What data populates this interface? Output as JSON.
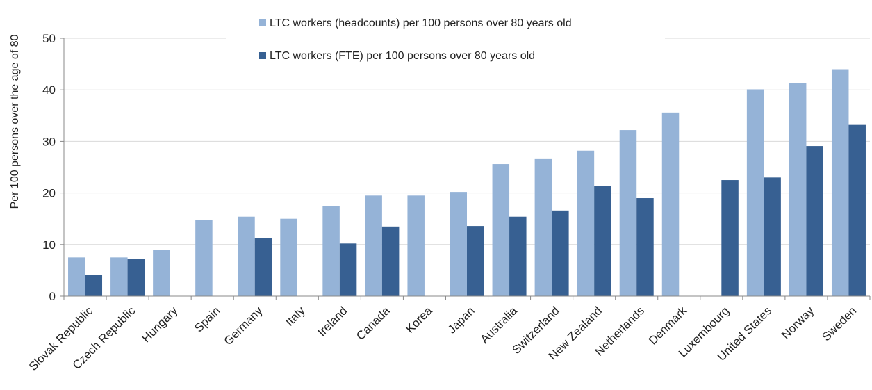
{
  "chart_data": {
    "type": "bar",
    "title": "",
    "xlabel": "",
    "ylabel": "Per 100 persons over the age of 80",
    "ylim": [
      0,
      50
    ],
    "yticks": [
      0,
      10,
      20,
      30,
      40,
      50
    ],
    "grid": "horizontal",
    "legend_position": "top",
    "categories": [
      "Slovak Republic",
      "Czech Republic",
      "Hungary",
      "Spain",
      "Germany",
      "Italy",
      "Ireland",
      "Canada",
      "Korea",
      "Japan",
      "Australia",
      "Switzerland",
      "New Zealand",
      "Netherlands",
      "Denmark",
      "Luxembourg",
      "United States",
      "Norway",
      "Sweden"
    ],
    "series": [
      {
        "name": "LTC workers (headcounts) per 100 persons over 80 years old",
        "color": "#95b3d7",
        "values": [
          7.5,
          7.5,
          9.0,
          14.7,
          15.4,
          15.0,
          17.5,
          19.5,
          19.5,
          20.2,
          25.6,
          26.7,
          28.2,
          32.2,
          35.6,
          null,
          40.1,
          41.3,
          44.0
        ]
      },
      {
        "name": "LTC workers (FTE) per 100 persons over 80 years old",
        "color": "#376092",
        "values": [
          4.1,
          7.2,
          null,
          null,
          11.2,
          null,
          10.2,
          13.5,
          null,
          13.6,
          15.4,
          16.6,
          21.4,
          19.0,
          null,
          22.5,
          23.0,
          29.1,
          33.2
        ]
      }
    ]
  }
}
